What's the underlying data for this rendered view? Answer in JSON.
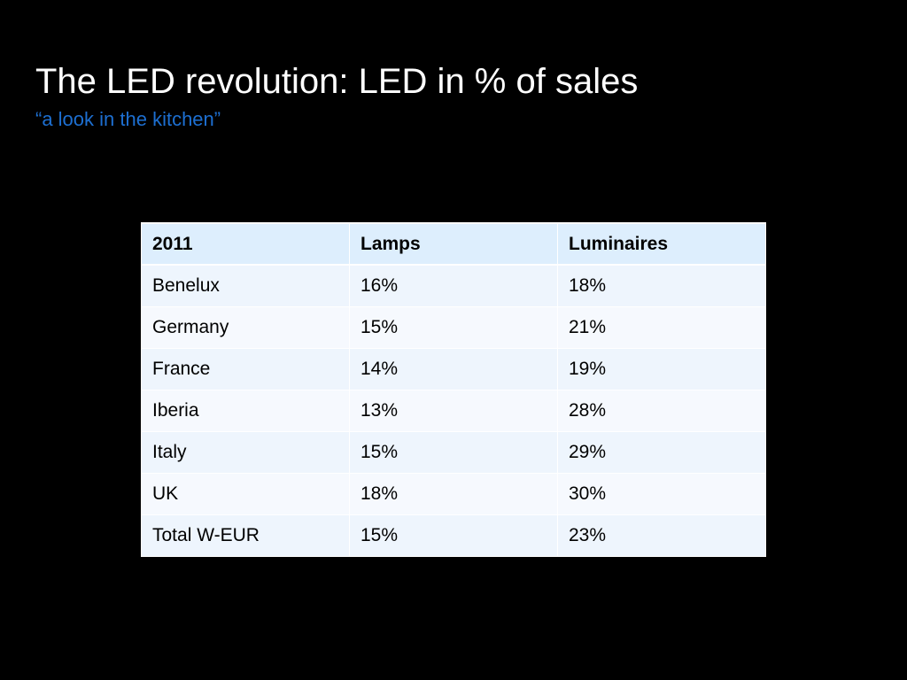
{
  "slide": {
    "title": "The LED revolution: LED in % of sales",
    "subtitle": "“a look in the kitchen”"
  },
  "table": {
    "headers": [
      "2011",
      "Lamps",
      "Luminaires"
    ],
    "rows": [
      [
        "Benelux",
        "16%",
        "18%"
      ],
      [
        "Germany",
        "15%",
        "21%"
      ],
      [
        "France",
        "14%",
        "19%"
      ],
      [
        "Iberia",
        "13%",
        "28%"
      ],
      [
        "Italy",
        "15%",
        "29%"
      ],
      [
        "UK",
        "18%",
        "30%"
      ],
      [
        "Total W-EUR",
        "15%",
        "23%"
      ]
    ]
  },
  "colors": {
    "background": "#000000",
    "title": "#ffffff",
    "subtitle": "#1d6fd1",
    "header_fill": "#ddeefd",
    "row_fill_odd": "#eef5fd",
    "row_fill_even": "#f6f9fe"
  }
}
